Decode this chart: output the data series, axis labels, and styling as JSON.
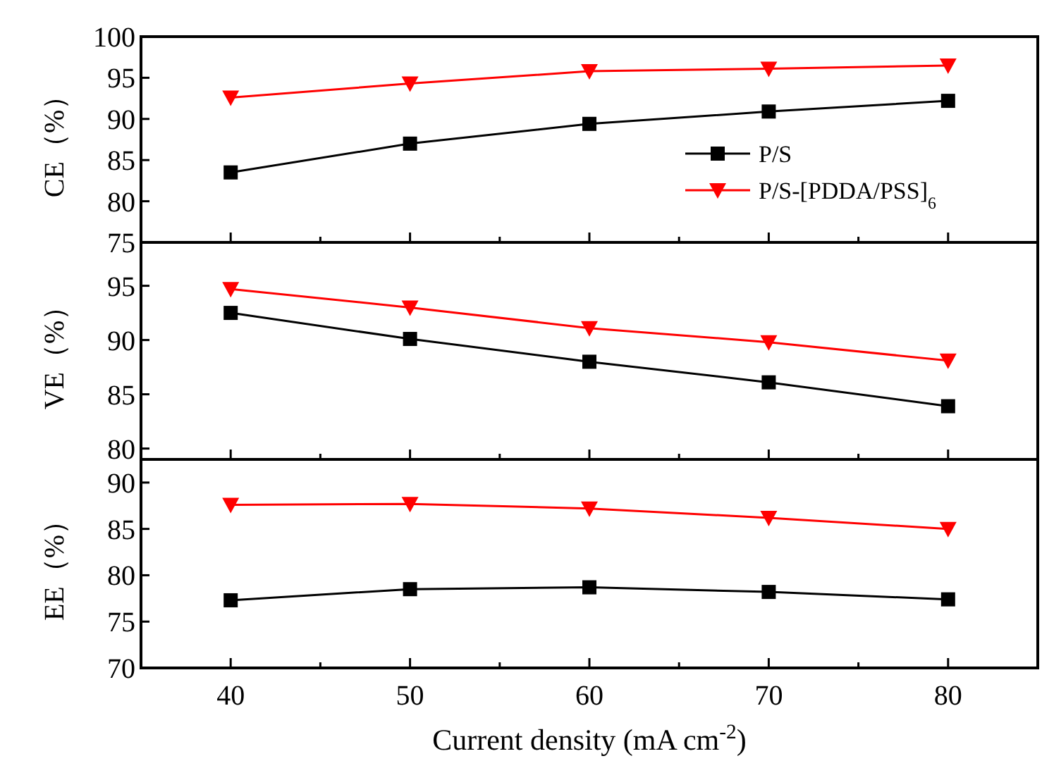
{
  "chart_data": [
    {
      "type": "line",
      "ylabel": "CE（%）",
      "x": [
        40,
        50,
        60,
        70,
        80
      ],
      "xlim": [
        35,
        85
      ],
      "xticks": [
        40,
        {
          "value": 45,
          "label": null
        },
        50,
        {
          "value": 55,
          "label": null
        },
        60,
        {
          "value": 65,
          "label": null
        },
        70,
        {
          "value": 75,
          "label": null
        },
        80
      ],
      "ylim": [
        75,
        100
      ],
      "yticks": [
        75,
        80,
        85,
        90,
        95,
        100
      ],
      "tick_labels": "y",
      "legend": "right",
      "grid": false,
      "series": [
        {
          "name": "P/S",
          "color": "#000000",
          "marker": "square",
          "values": [
            83.5,
            87.0,
            89.4,
            90.9,
            92.2
          ]
        },
        {
          "name": "P/S-[PDDA/PSS]$_{6}$",
          "color": "#ff0000",
          "marker": "triangle",
          "values": [
            92.6,
            94.3,
            95.8,
            96.1,
            96.5
          ]
        }
      ]
    },
    {
      "type": "line",
      "ylabel": "VE（%）",
      "x": [
        40,
        50,
        60,
        70,
        80
      ],
      "xlim": [
        35,
        85
      ],
      "xticks": [
        40,
        {
          "value": 45,
          "label": null
        },
        50,
        {
          "value": 55,
          "label": null
        },
        60,
        {
          "value": 65,
          "label": null
        },
        70,
        {
          "value": 75,
          "label": null
        },
        80
      ],
      "ylim": [
        79,
        99
      ],
      "yticks": [
        80,
        85,
        90,
        95
      ],
      "tick_labels": "y",
      "grid": false,
      "series": [
        {
          "color": "#000000",
          "marker": "square",
          "values": [
            92.5,
            90.1,
            88.0,
            86.1,
            83.9
          ]
        },
        {
          "color": "#ff0000",
          "marker": "triangle",
          "values": [
            94.7,
            93.0,
            91.1,
            89.8,
            88.1
          ]
        }
      ]
    },
    {
      "type": "line",
      "ylabel": "EE（%）",
      "xlabel": "Current density (mA cm$^{-2}$)",
      "x": [
        40,
        50,
        60,
        70,
        80
      ],
      "xlim": [
        35,
        85
      ],
      "xticks": [
        40,
        {
          "value": 45,
          "label": null
        },
        50,
        {
          "value": 55,
          "label": null
        },
        60,
        {
          "value": 65,
          "label": null
        },
        70,
        {
          "value": 75,
          "label": null
        },
        80
      ],
      "ylim": [
        70,
        92.5
      ],
      "yticks": [
        70,
        75,
        80,
        85,
        90
      ],
      "grid": false,
      "series": [
        {
          "color": "#000000",
          "marker": "square",
          "values": [
            77.3,
            78.5,
            78.7,
            78.2,
            77.4
          ]
        },
        {
          "color": "#ff0000",
          "marker": "triangle",
          "values": [
            87.6,
            87.7,
            87.2,
            86.2,
            85.0
          ]
        }
      ]
    }
  ]
}
